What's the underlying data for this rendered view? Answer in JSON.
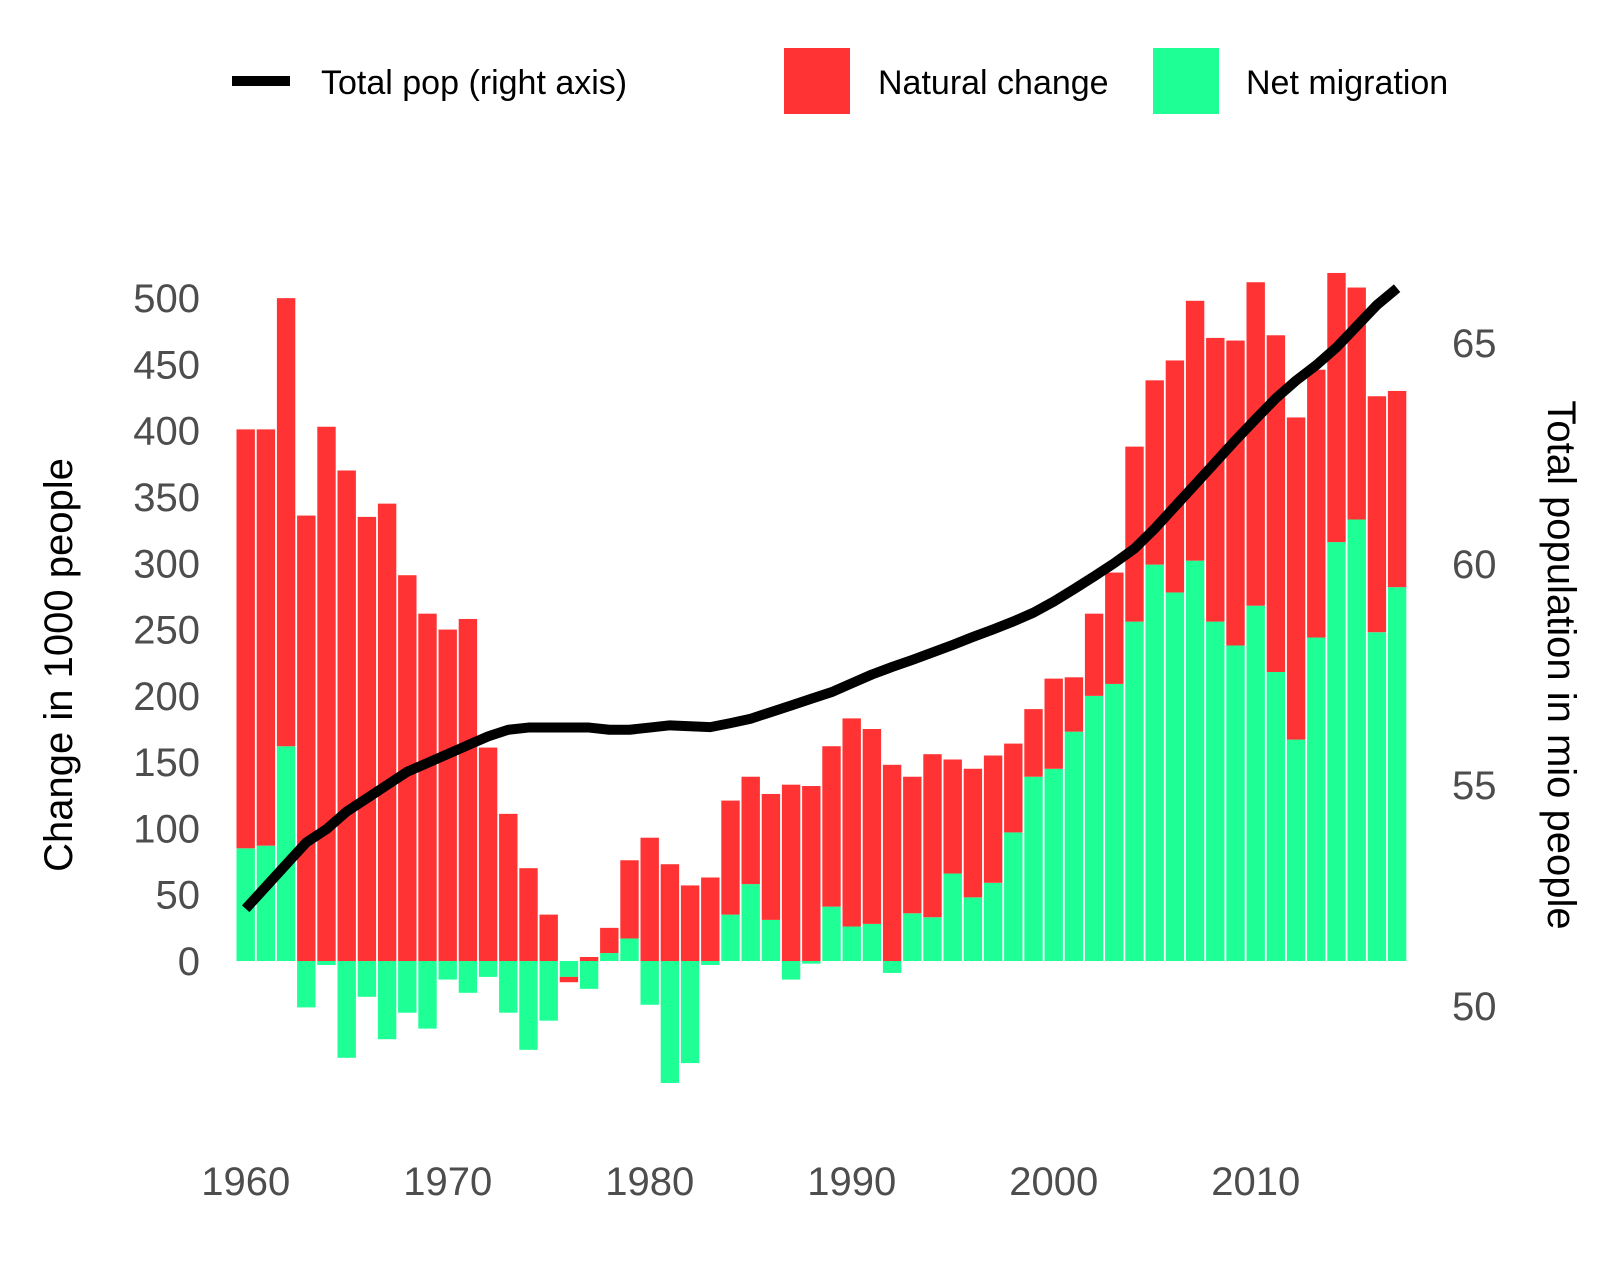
{
  "chart_data": {
    "type": "bar",
    "subtype": "stacked bar with line on secondary axis",
    "legend": {
      "position": "top",
      "entries": [
        {
          "label": "Total pop (right axis)",
          "kind": "line",
          "color": "#000000"
        },
        {
          "label": "Natural change",
          "kind": "bar",
          "color": "#FF3333"
        },
        {
          "label": "Net migration",
          "kind": "bar",
          "color": "#1EFF96"
        }
      ]
    },
    "ylabel_left": "Change in 1000 people",
    "ylabel_right": "Total population in mio people",
    "x_ticks": [
      "1960",
      "1970",
      "1980",
      "1990",
      "2000",
      "2010"
    ],
    "y_left_ticks": [
      "0",
      "50",
      "100",
      "150",
      "200",
      "250",
      "300",
      "350",
      "400",
      "450",
      "500"
    ],
    "y_right_ticks": [
      "50",
      "55",
      "60",
      "65"
    ],
    "y_left_range": [
      -90,
      520
    ],
    "y_right_range": [
      50,
      66.2
    ],
    "grid": false,
    "years": [
      1960,
      1961,
      1962,
      1963,
      1964,
      1965,
      1966,
      1967,
      1968,
      1969,
      1970,
      1971,
      1972,
      1973,
      1974,
      1975,
      1976,
      1977,
      1978,
      1979,
      1980,
      1981,
      1982,
      1983,
      1984,
      1985,
      1986,
      1987,
      1988,
      1989,
      1990,
      1991,
      1992,
      1993,
      1994,
      1995,
      1996,
      1997,
      1998,
      1999,
      2000,
      2001,
      2002,
      2003,
      2004,
      2005,
      2006,
      2007,
      2008,
      2009,
      2010,
      2011,
      2012,
      2013,
      2014,
      2015,
      2016,
      2017
    ],
    "series": [
      {
        "name": "Net migration",
        "color": "#1EFF96",
        "values": [
          85,
          87,
          162,
          -35,
          -3,
          -73,
          -27,
          -59,
          -39,
          -51,
          -14,
          -24,
          -12,
          -39,
          -67,
          -45,
          -12,
          -21,
          6,
          17,
          -33,
          -92,
          -77,
          -3,
          35,
          58,
          31,
          -14,
          -2,
          41,
          26,
          28,
          -9,
          36,
          33,
          66,
          48,
          59,
          97,
          139,
          145,
          173,
          200,
          209,
          256,
          299,
          278,
          302,
          256,
          238,
          268,
          218,
          167,
          244,
          316,
          333,
          248,
          282
        ]
      },
      {
        "name": "Natural change",
        "color": "#FF3333",
        "values": [
          316,
          314,
          338,
          336,
          403,
          370,
          335,
          345,
          291,
          262,
          250,
          258,
          161,
          111,
          70,
          35,
          -4,
          3,
          19,
          59,
          93,
          73,
          57,
          63,
          86,
          81,
          95,
          133,
          132,
          121,
          157,
          147,
          148,
          103,
          123,
          86,
          97,
          96,
          67,
          51,
          68,
          41,
          62,
          84,
          132,
          139,
          175,
          196,
          214,
          230,
          244,
          254,
          243,
          202,
          203,
          175,
          178,
          148
        ]
      },
      {
        "name": "Total pop (right axis)",
        "axis": "right",
        "values": [
          52.2,
          52.7,
          53.2,
          53.7,
          54.0,
          54.4,
          54.7,
          55.0,
          55.3,
          55.5,
          55.7,
          55.9,
          56.1,
          56.25,
          56.3,
          56.3,
          56.3,
          56.3,
          56.25,
          56.25,
          56.3,
          56.35,
          56.33,
          56.31,
          56.4,
          56.5,
          56.65,
          56.8,
          56.95,
          57.1,
          57.3,
          57.5,
          57.67,
          57.83,
          58.0,
          58.17,
          58.35,
          58.52,
          58.7,
          58.9,
          59.15,
          59.43,
          59.72,
          60.02,
          60.35,
          60.8,
          61.3,
          61.8,
          62.3,
          62.8,
          63.28,
          63.75,
          64.15,
          64.5,
          64.9,
          65.38,
          65.86,
          66.24
        ]
      }
    ]
  }
}
